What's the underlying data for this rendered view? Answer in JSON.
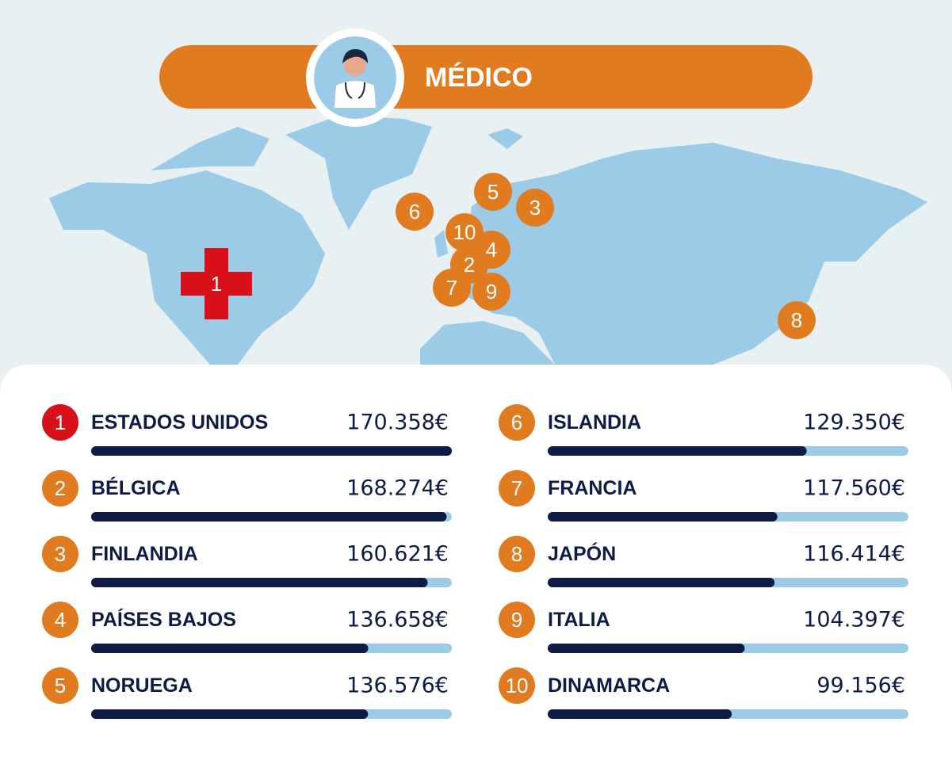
{
  "chart_data": {
    "type": "bar",
    "title": "MÉDICO",
    "categories": [
      "ESTADOS UNIDOS",
      "BÉLGICA",
      "FINLANDIA",
      "PAÍSES BAJOS",
      "NORUEGA",
      "ISLANDIA",
      "FRANCIA",
      "JAPÓN",
      "ITALIA",
      "DINAMARCA"
    ],
    "ranks": [
      1,
      2,
      3,
      4,
      5,
      6,
      7,
      8,
      9,
      10
    ],
    "values": [
      170358,
      168274,
      160621,
      136658,
      136576,
      129350,
      117560,
      116414,
      104397,
      99156
    ],
    "value_labels": [
      "170.358€",
      "168.274€",
      "160.621€",
      "136.658€",
      "136.576€",
      "129.350€",
      "117.560€",
      "116.414€",
      "104.397€",
      "99.156€"
    ],
    "xlim": [
      25000,
      170358
    ],
    "color": "#0d1b45",
    "track_color": "#9ccbe8",
    "rank_color": "#e07b20",
    "top_rank_color": "#d7101a"
  }
}
